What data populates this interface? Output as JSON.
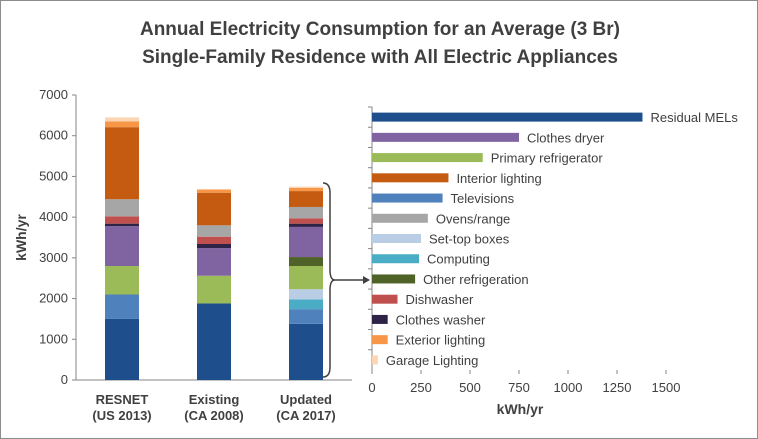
{
  "title_line1": "Annual Electricity Consumption for an Average (3 Br)",
  "title_line2": "Single-Family Residence with All Electric Appliances",
  "chart_data": [
    {
      "type": "bar",
      "stacked": true,
      "ylabel": "kWh/yr",
      "ylim": [
        0,
        7000
      ],
      "yticks": [
        0,
        1000,
        2000,
        3000,
        4000,
        5000,
        6000,
        7000
      ],
      "categories": [
        {
          "line1": "RESNET",
          "line2": "(US 2013)"
        },
        {
          "line1": "Existing",
          "line2": "(CA 2008)"
        },
        {
          "line1": "Updated",
          "line2": "(CA 2017)"
        }
      ],
      "series": [
        {
          "key": "residual",
          "color": "#1f4e8c",
          "values": [
            1500,
            1880,
            1380
          ]
        },
        {
          "key": "tv",
          "color": "#4f81bd",
          "values": [
            600,
            0,
            360
          ]
        },
        {
          "key": "computing",
          "color": "#4bacc6",
          "values": [
            0,
            0,
            240
          ]
        },
        {
          "key": "settop",
          "color": "#b9cde5",
          "values": [
            0,
            0,
            250
          ]
        },
        {
          "key": "fridge",
          "color": "#9bbb59",
          "values": [
            700,
            680,
            570
          ]
        },
        {
          "key": "otherfridge",
          "color": "#4f6228",
          "values": [
            0,
            0,
            220
          ]
        },
        {
          "key": "dryer",
          "color": "#8064a2",
          "values": [
            980,
            680,
            740
          ]
        },
        {
          "key": "washer",
          "color": "#2e2247",
          "values": [
            60,
            100,
            80
          ]
        },
        {
          "key": "dishwasher",
          "color": "#c0504d",
          "values": [
            180,
            180,
            130
          ]
        },
        {
          "key": "oven",
          "color": "#a6a6a6",
          "values": [
            420,
            280,
            280
          ]
        },
        {
          "key": "lighting",
          "color": "#c55a11",
          "values": [
            1770,
            800,
            390
          ]
        },
        {
          "key": "exterior",
          "color": "#f79646",
          "values": [
            140,
            80,
            80
          ]
        },
        {
          "key": "garage",
          "color": "#fcd5b5",
          "values": [
            100,
            0,
            30
          ]
        }
      ]
    },
    {
      "type": "bar",
      "orientation": "horizontal",
      "xlabel": "kWh/yr",
      "xlim": [
        0,
        1500
      ],
      "xticks": [
        0,
        250,
        500,
        750,
        1000,
        1250,
        1500
      ],
      "categories": [
        "Residual MELs",
        "Clothes dryer",
        "Primary refrigerator",
        "Interior lighting",
        "Televisions",
        "Ovens/range",
        "Set-top boxes",
        "Computing",
        "Other refrigeration",
        "Dishwasher",
        "Clothes washer",
        "Exterior lighting",
        "Garage Lighting"
      ],
      "values": [
        1380,
        750,
        565,
        390,
        360,
        285,
        250,
        240,
        220,
        130,
        80,
        80,
        30
      ],
      "colors": [
        "#1f4e8c",
        "#8064a2",
        "#9bbb59",
        "#c55a11",
        "#4f81bd",
        "#a6a6a6",
        "#b9cde5",
        "#4bacc6",
        "#4f6228",
        "#c0504d",
        "#2e2247",
        "#f79646",
        "#fcd5b5"
      ]
    }
  ]
}
